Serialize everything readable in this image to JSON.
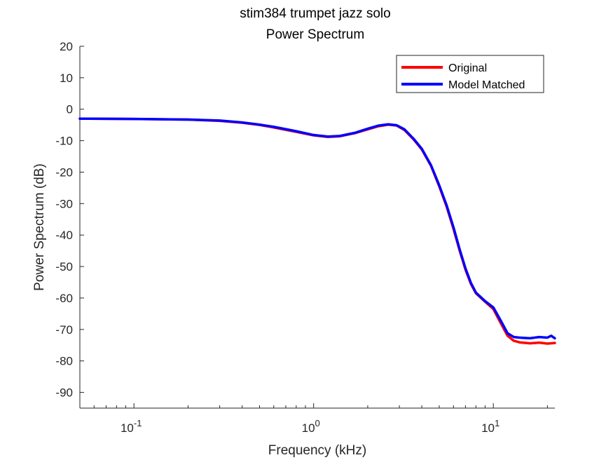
{
  "chart_data": {
    "type": "line",
    "title": "stim384 trumpet jazz solo",
    "subtitle": "Power Spectrum",
    "xlabel": "Frequency (kHz)",
    "ylabel": "Power Spectrum (dB)",
    "xscale": "log",
    "xlim": [
      0.05,
      22
    ],
    "ylim": [
      -95,
      20
    ],
    "yticks": [
      20,
      10,
      0,
      -10,
      -20,
      -30,
      -40,
      -50,
      -60,
      -70,
      -80,
      -90
    ],
    "ytick_labels": [
      "20",
      "10",
      "0",
      "-10",
      "-20",
      "-30",
      "-40",
      "-50",
      "-60",
      "-70",
      "-80",
      "-90"
    ],
    "xticks": [
      0.1,
      1,
      10
    ],
    "xtick_labels": [
      {
        "base": "10",
        "exp": "-1"
      },
      {
        "base": "10",
        "exp": "0"
      },
      {
        "base": "10",
        "exp": "1"
      }
    ],
    "grid": false,
    "legend_position": "top-right",
    "series": [
      {
        "name": "Original",
        "color": "#ff0000",
        "points": [
          [
            0.05,
            -3.0
          ],
          [
            0.1,
            -3.1
          ],
          [
            0.2,
            -3.3
          ],
          [
            0.3,
            -3.7
          ],
          [
            0.4,
            -4.3
          ],
          [
            0.5,
            -5.0
          ],
          [
            0.6,
            -5.8
          ],
          [
            0.8,
            -7.2
          ],
          [
            1.0,
            -8.3
          ],
          [
            1.2,
            -8.8
          ],
          [
            1.4,
            -8.6
          ],
          [
            1.7,
            -7.6
          ],
          [
            2.0,
            -6.4
          ],
          [
            2.3,
            -5.4
          ],
          [
            2.6,
            -4.9
          ],
          [
            2.9,
            -5.2
          ],
          [
            3.2,
            -6.6
          ],
          [
            3.6,
            -9.6
          ],
          [
            4.0,
            -12.8
          ],
          [
            4.5,
            -18.0
          ],
          [
            5.0,
            -24.5
          ],
          [
            5.5,
            -31.0
          ],
          [
            6.0,
            -38.0
          ],
          [
            6.5,
            -45.0
          ],
          [
            7.0,
            -51.0
          ],
          [
            7.5,
            -55.5
          ],
          [
            8.0,
            -58.5
          ],
          [
            9.0,
            -61.2
          ],
          [
            10.0,
            -63.5
          ],
          [
            11.0,
            -68.0
          ],
          [
            12.0,
            -72.0
          ],
          [
            13.0,
            -73.6
          ],
          [
            14.0,
            -74.1
          ],
          [
            16.0,
            -74.4
          ],
          [
            18.0,
            -74.2
          ],
          [
            20.0,
            -74.5
          ],
          [
            22.0,
            -74.3
          ]
        ]
      },
      {
        "name": "Model Matched",
        "color": "#0000ff",
        "points": [
          [
            0.05,
            -3.0
          ],
          [
            0.1,
            -3.1
          ],
          [
            0.2,
            -3.3
          ],
          [
            0.3,
            -3.6
          ],
          [
            0.4,
            -4.2
          ],
          [
            0.5,
            -4.9
          ],
          [
            0.6,
            -5.6
          ],
          [
            0.8,
            -7.0
          ],
          [
            1.0,
            -8.2
          ],
          [
            1.2,
            -8.7
          ],
          [
            1.4,
            -8.5
          ],
          [
            1.7,
            -7.5
          ],
          [
            2.0,
            -6.2
          ],
          [
            2.3,
            -5.2
          ],
          [
            2.6,
            -4.8
          ],
          [
            2.9,
            -5.1
          ],
          [
            3.2,
            -6.4
          ],
          [
            3.6,
            -9.4
          ],
          [
            4.0,
            -12.6
          ],
          [
            4.5,
            -17.8
          ],
          [
            5.0,
            -24.2
          ],
          [
            5.5,
            -30.6
          ],
          [
            6.0,
            -37.5
          ],
          [
            6.5,
            -44.6
          ],
          [
            7.0,
            -50.6
          ],
          [
            7.5,
            -55.2
          ],
          [
            8.0,
            -58.3
          ],
          [
            9.0,
            -61.0
          ],
          [
            10.0,
            -63.0
          ],
          [
            11.0,
            -67.2
          ],
          [
            12.0,
            -71.2
          ],
          [
            13.0,
            -72.4
          ],
          [
            14.0,
            -72.6
          ],
          [
            16.0,
            -72.8
          ],
          [
            18.0,
            -72.4
          ],
          [
            20.0,
            -72.6
          ],
          [
            21.0,
            -72.0
          ],
          [
            22.0,
            -72.8
          ]
        ]
      }
    ]
  }
}
